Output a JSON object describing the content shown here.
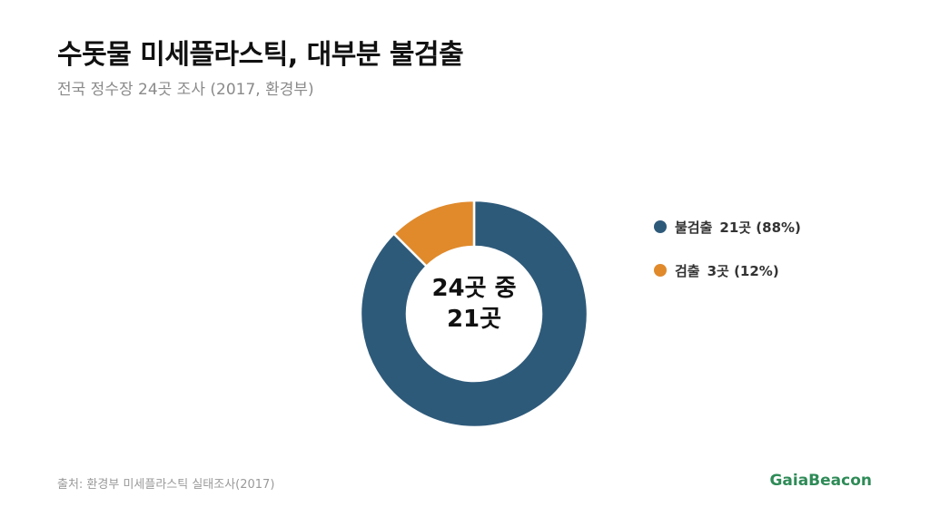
{
  "title": "수돗물 미세플라스틱, 대부분 불검출",
  "subtitle": "전국 정수장 24곳 조사 (2017, 환경부)",
  "center": {
    "line1": "24곳 중",
    "line2": "21곳"
  },
  "legend": [
    {
      "label": "불검출",
      "value": "21곳 (88%)",
      "color": "#2e5a7a"
    },
    {
      "label": "검출",
      "value": "3곳 (12%)",
      "color": "#e08a2c"
    }
  ],
  "source": "출처: 환경부 미세플라스틱 실태조사(2017)",
  "brand": "GaiaBeacon",
  "colors": {
    "brand": "#2e8b57"
  },
  "chart_data": {
    "type": "pie",
    "style": "donut",
    "title": "수돗물 미세플라스틱, 대부분 불검출",
    "subtitle": "전국 정수장 24곳 조사 (2017, 환경부)",
    "categories": [
      "불검출",
      "검출"
    ],
    "values": [
      21,
      3
    ],
    "percent": [
      88,
      12
    ],
    "colors": [
      "#2e5a7a",
      "#e08a2c"
    ],
    "legend_position": "right"
  }
}
